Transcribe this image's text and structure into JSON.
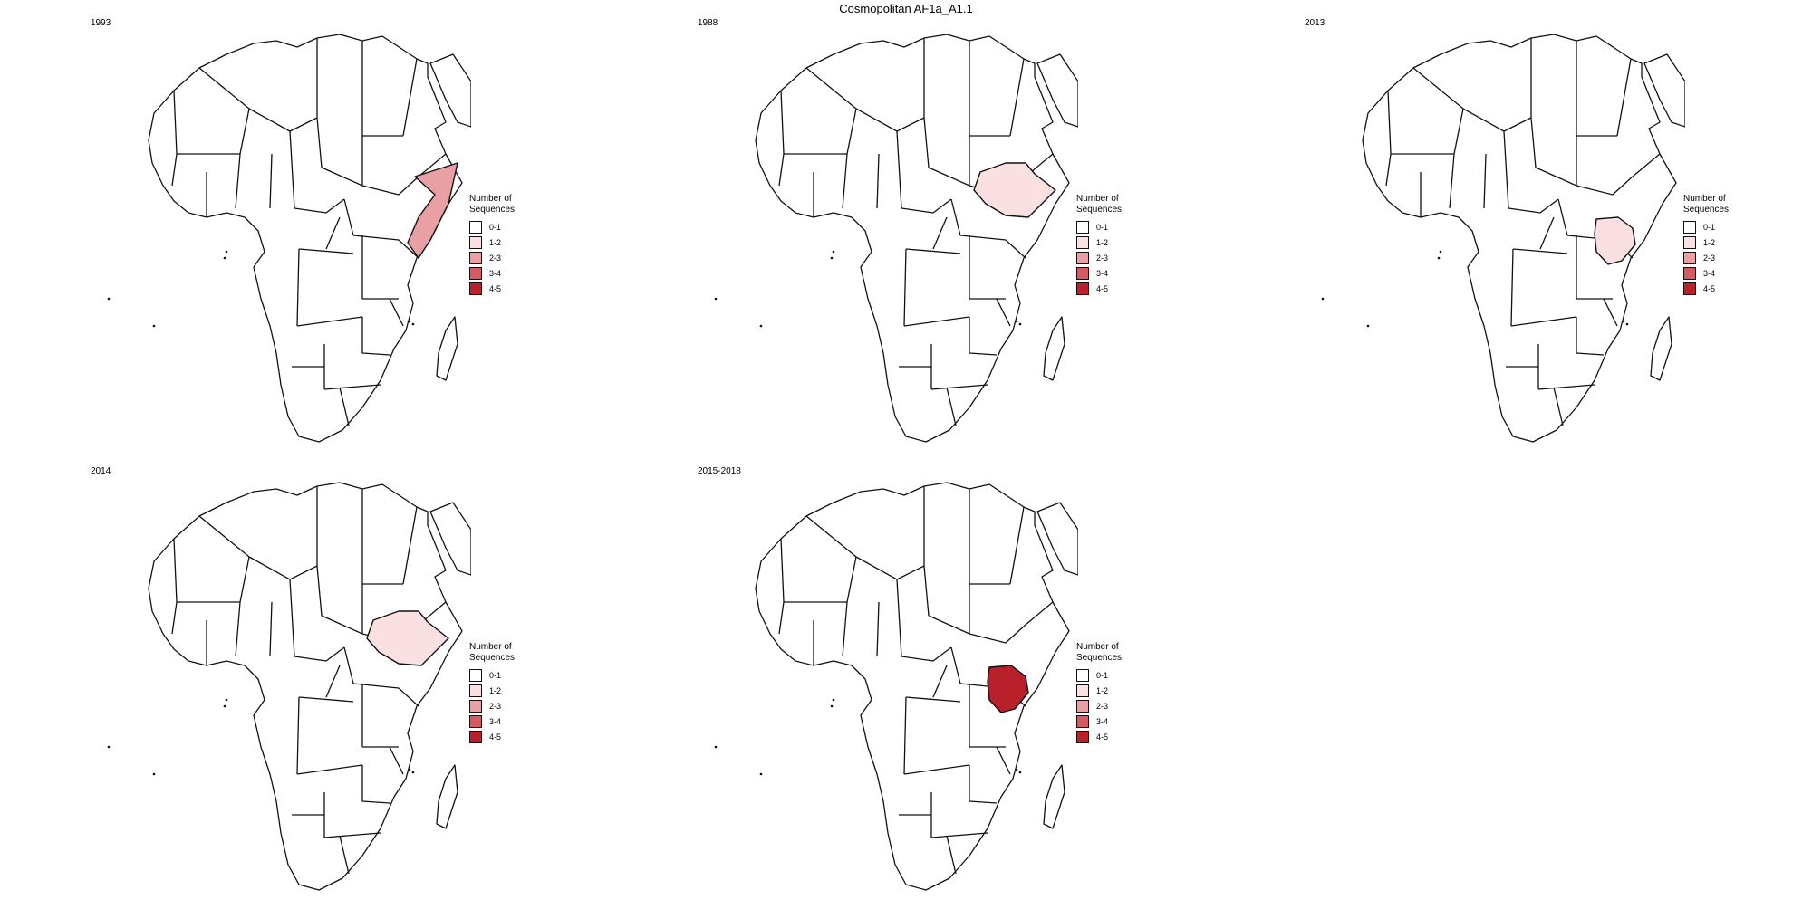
{
  "title": "Cosmopolitan AF1a_A1.1",
  "legend": {
    "title_line1": "Number of",
    "title_line2": "Sequences",
    "bins": [
      {
        "label": "0-1",
        "color": "#ffffff"
      },
      {
        "label": "1-2",
        "color": "#fbe0e1"
      },
      {
        "label": "2-3",
        "color": "#e8a0a4"
      },
      {
        "label": "3-4",
        "color": "#d35b61"
      },
      {
        "label": "4-5",
        "color": "#b8202a"
      }
    ]
  },
  "panels": [
    {
      "year": "1993",
      "highlight": {
        "region": "somalia",
        "bin": "2-3"
      }
    },
    {
      "year": "1988",
      "highlight": {
        "region": "ethiopia",
        "bin": "1-2"
      }
    },
    {
      "year": "2013",
      "highlight": {
        "region": "kenya",
        "bin": "1-2"
      }
    },
    {
      "year": "2014",
      "highlight": {
        "region": "ethiopia",
        "bin": "1-2"
      }
    },
    {
      "year": "2015-2018",
      "highlight": {
        "region": "kenya",
        "bin": "4-5"
      }
    }
  ]
}
